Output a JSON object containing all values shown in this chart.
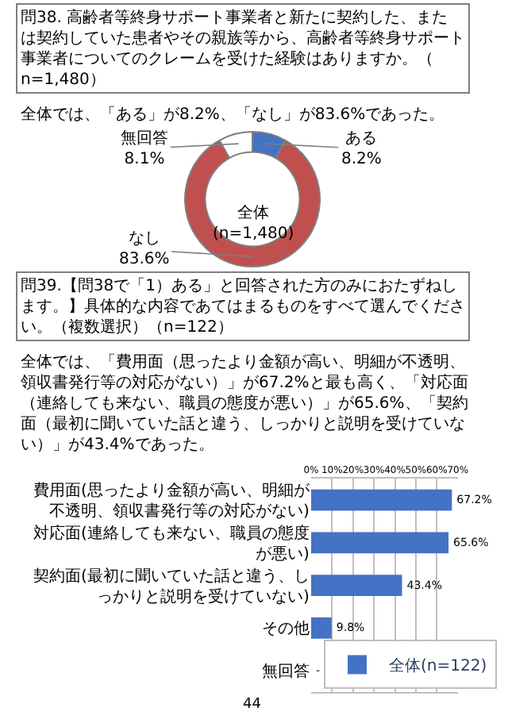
{
  "chart_data": [
    {
      "type": "donut",
      "title": "問38. 高齢者等終身サポート事業者と新たに契約した、または契約していた患者やその親族等から、高齢者等終身サポート事業者についてのクレームを受けた経験はありますか。（n=1,480）",
      "subtitle": "全体では、「ある」が8.2%、「なし」が83.6%であった。",
      "categories": [
        "ある",
        "なし",
        "無回答"
      ],
      "values": [
        8.2,
        83.6,
        8.1
      ],
      "value_labels": [
        "8.2%",
        "83.6%",
        "8.1%"
      ],
      "colors": [
        "#4472c4",
        "#c0504d",
        "#ffffff"
      ],
      "annotations": [
        "全体(n=1,480)"
      ]
    },
    {
      "type": "bar",
      "orientation": "horizontal",
      "title": "問39.【問38で「1）ある」と回答された方のみにおたずねします。】具体的な内容であてはまるものをすべて選んでください。（複数選択）（n=122）",
      "subtitle": "全体では、「費用面（思ったより金額が高い、明細が不透明、領収書発行等の対応がない）」が67.2%と最も高く、「対応面（連絡しても来ない、職員の態度が悪い）」が65.6%、「契約面（最初に聞いていた話と違う、しっかりと説明を受けていない）」が43.4%であった。",
      "categories": [
        "費用面(思ったより金額が高い、明細が不透明、領収書発行等の対応がない)",
        "対応面(連絡しても来ない、職員の態度が悪い)",
        "契約面(最初に聞いていた話と違う、しっかりと説明を受けていない)",
        "その他",
        "無回答"
      ],
      "series": [
        {
          "name": "全体(n=122)",
          "color": "#4472c4",
          "values": [
            67.2,
            65.6,
            43.4,
            9.8,
            0
          ],
          "value_labels": [
            "67.2%",
            "65.6%",
            "43.4%",
            "9.8%",
            "-"
          ]
        }
      ],
      "xlim": [
        0,
        70
      ],
      "xticks": [
        {
          "value": 0,
          "label": "0%"
        },
        {
          "value": 10,
          "label": "10%"
        },
        {
          "value": 20,
          "label": "20%"
        },
        {
          "value": 30,
          "label": "30%"
        },
        {
          "value": 40,
          "label": "40%"
        },
        {
          "value": 50,
          "label": "50%"
        },
        {
          "value": 60,
          "label": "60%"
        },
        {
          "value": 70,
          "label": "70%"
        }
      ],
      "grid": "x",
      "legend": "bottom right",
      "annotations": [
        "44"
      ]
    }
  ]
}
